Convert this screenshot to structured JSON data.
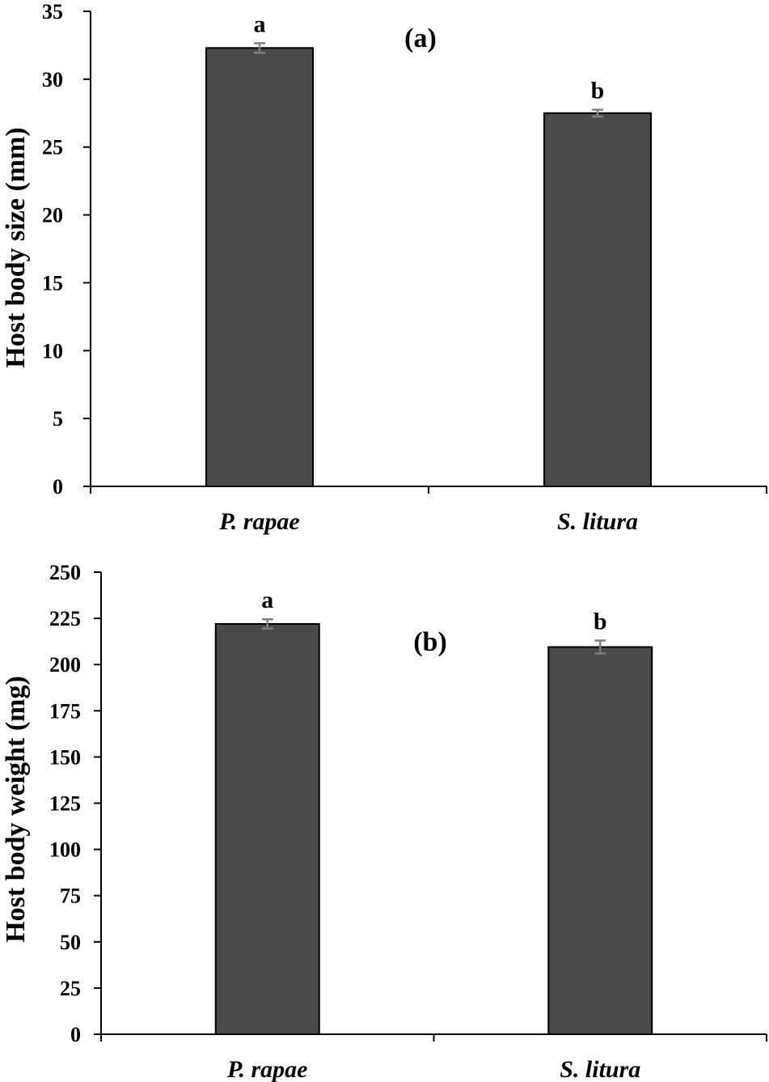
{
  "chart_data": [
    {
      "type": "bar",
      "panel_label": "(a)",
      "categories": [
        "P. rapae",
        "S. litura"
      ],
      "values": [
        32.3,
        27.5
      ],
      "errors": [
        0.35,
        0.25
      ],
      "significance": [
        "a",
        "b"
      ],
      "xlabel": "",
      "ylabel": "Host body size (mm)",
      "ylim": [
        0,
        35
      ],
      "yticks": [
        0,
        5,
        10,
        15,
        20,
        25,
        30,
        35
      ],
      "grid": false,
      "legend": "none",
      "colors": {
        "bar": "#4a4a4a",
        "error": "#7f7f7f"
      }
    },
    {
      "type": "bar",
      "panel_label": "(b)",
      "categories": [
        "P. rapae",
        "S. litura"
      ],
      "values": [
        222,
        209.5
      ],
      "errors": [
        2.5,
        3.5
      ],
      "significance": [
        "a",
        "b"
      ],
      "xlabel": "",
      "ylabel": "Host body weight (mg)",
      "ylim": [
        0,
        250
      ],
      "yticks": [
        0,
        25,
        50,
        75,
        100,
        125,
        150,
        175,
        200,
        225,
        250
      ],
      "grid": false,
      "legend": "none",
      "colors": {
        "bar": "#4a4a4a",
        "error": "#7f7f7f"
      }
    }
  ]
}
